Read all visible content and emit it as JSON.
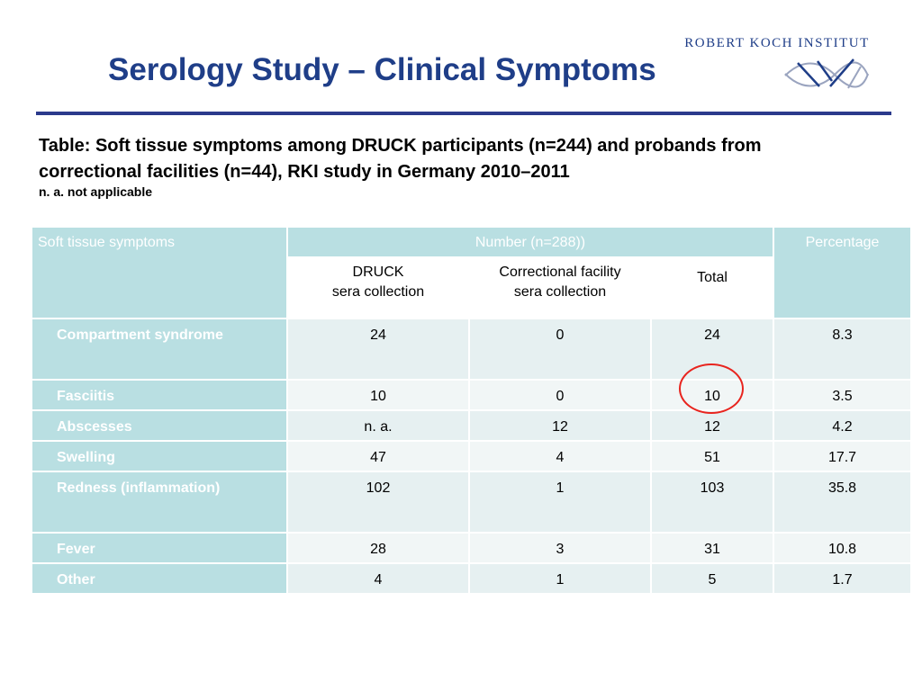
{
  "title": "Serology Study – Clinical Symptoms",
  "logo": {
    "text": "ROBERT KOCH INSTITUT",
    "icon": "rki-helix-logo-icon"
  },
  "caption": {
    "line1": "Table: Soft tissue symptoms among DRUCK participants (n=244) and probands from",
    "line2": "correctional facilities  (n=44), RKI study in Germany 2010–2011",
    "note": "n. a. not applicable"
  },
  "table": {
    "header": {
      "col1": "Soft tissue symptoms",
      "number_group": "Number (n=288))",
      "percentage": "Percentage",
      "sub_druck_1": "DRUCK",
      "sub_druck_2": "sera collection",
      "sub_corr_1": "Correctional facility",
      "sub_corr_2": "sera collection",
      "sub_total": "Total"
    },
    "rows": [
      {
        "label": "Compartment syndrome",
        "druck": "24",
        "correctional": "0",
        "total": "24",
        "percentage": "8.3"
      },
      {
        "label": "Fasciitis",
        "druck": "10",
        "correctional": "0",
        "total": "10",
        "percentage": "3.5"
      },
      {
        "label": "Abscesses",
        "druck": "n. a.",
        "correctional": "12",
        "total": "12",
        "percentage": "4.2"
      },
      {
        "label": "Swelling",
        "druck": "47",
        "correctional": "4",
        "total": "51",
        "percentage": "17.7"
      },
      {
        "label": "Redness (inflammation)",
        "druck": "102",
        "correctional": "1",
        "total": "103",
        "percentage": "35.8"
      },
      {
        "label": "Fever",
        "druck": "28",
        "correctional": "3",
        "total": "31",
        "percentage": "10.8"
      },
      {
        "label": "Other",
        "druck": "4",
        "correctional": "1",
        "total": "5",
        "percentage": "1.7"
      }
    ]
  },
  "colors": {
    "title": "#1f3e88",
    "header": "#b9dfe2",
    "highlight_circle": "#e8241e"
  }
}
